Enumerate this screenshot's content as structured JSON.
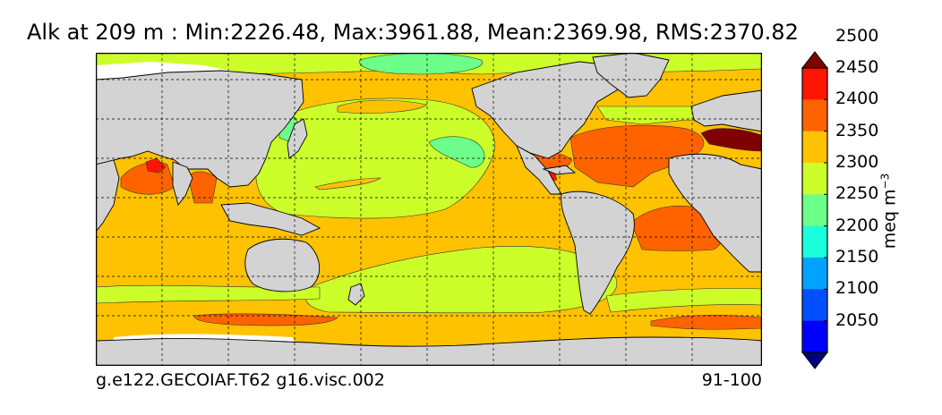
{
  "title": "Alk at 209 m : Min:2226.48, Max:3961.88, Mean:2369.98, RMS:2370.82",
  "caption_left": "g.e122.GECOIAF.T62 g16.visc.002",
  "caption_right": "91-100",
  "colorbar": {
    "units_base": "meq m",
    "units_exp": "−3",
    "levels": [
      "2050",
      "2100",
      "2150",
      "2200",
      "2250",
      "2300",
      "2350",
      "2400",
      "2450",
      "2500"
    ],
    "colors": [
      "#00007f",
      "#0000ff",
      "#0050ff",
      "#00a4ff",
      "#19ffde",
      "#6dff89",
      "#ccff2a",
      "#ffc200",
      "#ff6300",
      "#ff1600",
      "#7f0000"
    ],
    "extend": "both"
  },
  "colors": {
    "land": "#d3d3d3",
    "sea_ice_missing": "#ffffff",
    "coast": "#000000",
    "grid": "#000000"
  },
  "map": {
    "projection": "cylindrical",
    "gridlines": "dashed"
  }
}
